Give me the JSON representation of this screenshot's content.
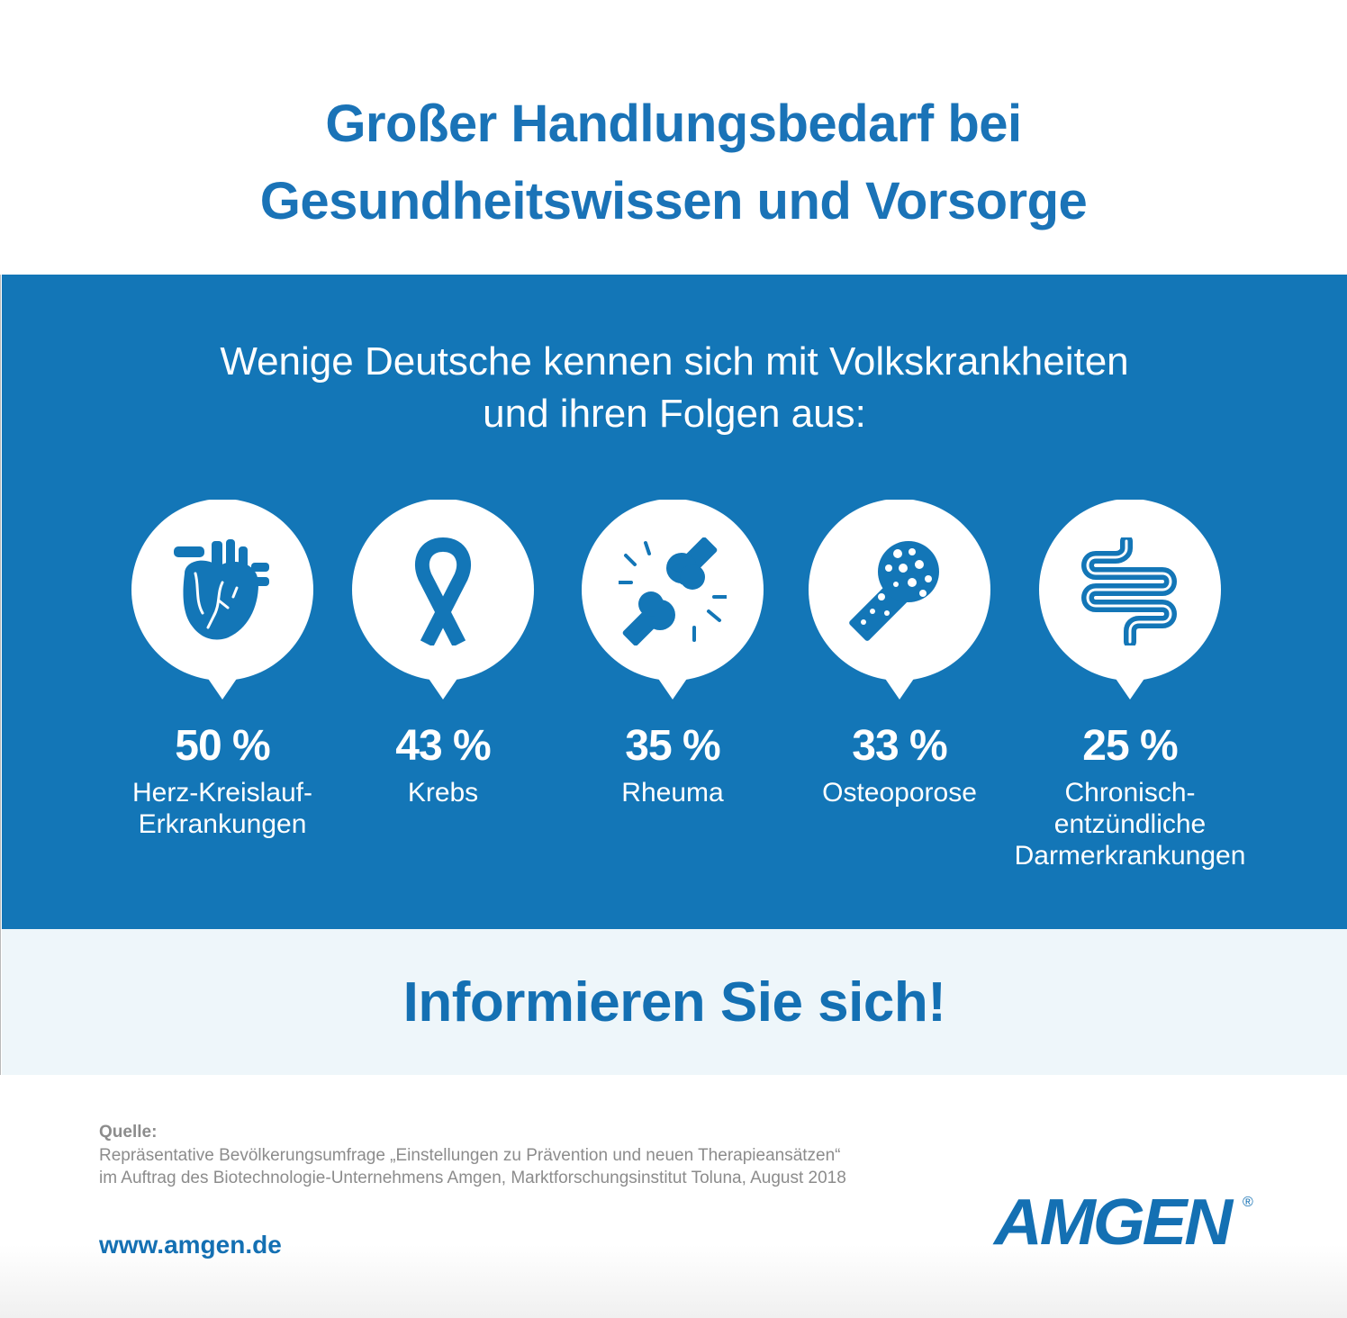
{
  "header": {
    "title_line1": "Großer Handlungsbedarf bei",
    "title_line2": "Gesundheitswissen und Vorsorge"
  },
  "band": {
    "subtitle_line1": "Wenige Deutsche kennen sich mit Volkskrankheiten",
    "subtitle_line2": "und ihren Folgen aus:"
  },
  "stats": [
    {
      "value": "50 %",
      "label_line1": "Herz-Kreislauf-",
      "label_line2": "Erkrankungen",
      "icon": "heart-icon"
    },
    {
      "value": "43 %",
      "label_line1": "Krebs",
      "label_line2": "",
      "icon": "ribbon-icon"
    },
    {
      "value": "35 %",
      "label_line1": "Rheuma",
      "label_line2": "",
      "icon": "joint-icon"
    },
    {
      "value": "33 %",
      "label_line1": "Osteoporose",
      "label_line2": "",
      "icon": "bone-icon"
    },
    {
      "value": "25 %",
      "label_line1": "Chronisch-entzündliche",
      "label_line2": "Darmerkrankungen",
      "icon": "intestine-icon"
    }
  ],
  "cta": {
    "text": "Informieren Sie sich!"
  },
  "footer": {
    "source_heading": "Quelle:",
    "source_line1": "Repräsentative Bevölkerungsumfrage „Einstellungen zu Prävention und neuen Therapieansätzen“",
    "source_line2": "im Auftrag des Biotechnologie-Unternehmens Amgen, Marktforschungsinstitut Toluna, August 2018",
    "url": "www.amgen.de",
    "logo_text": "AMGEN",
    "logo_mark": "®"
  },
  "colors": {
    "brand_blue": "#1376b7",
    "title_blue": "#1a73b7",
    "cta_background": "#eef6fa",
    "source_gray": "#8c8c8c"
  }
}
